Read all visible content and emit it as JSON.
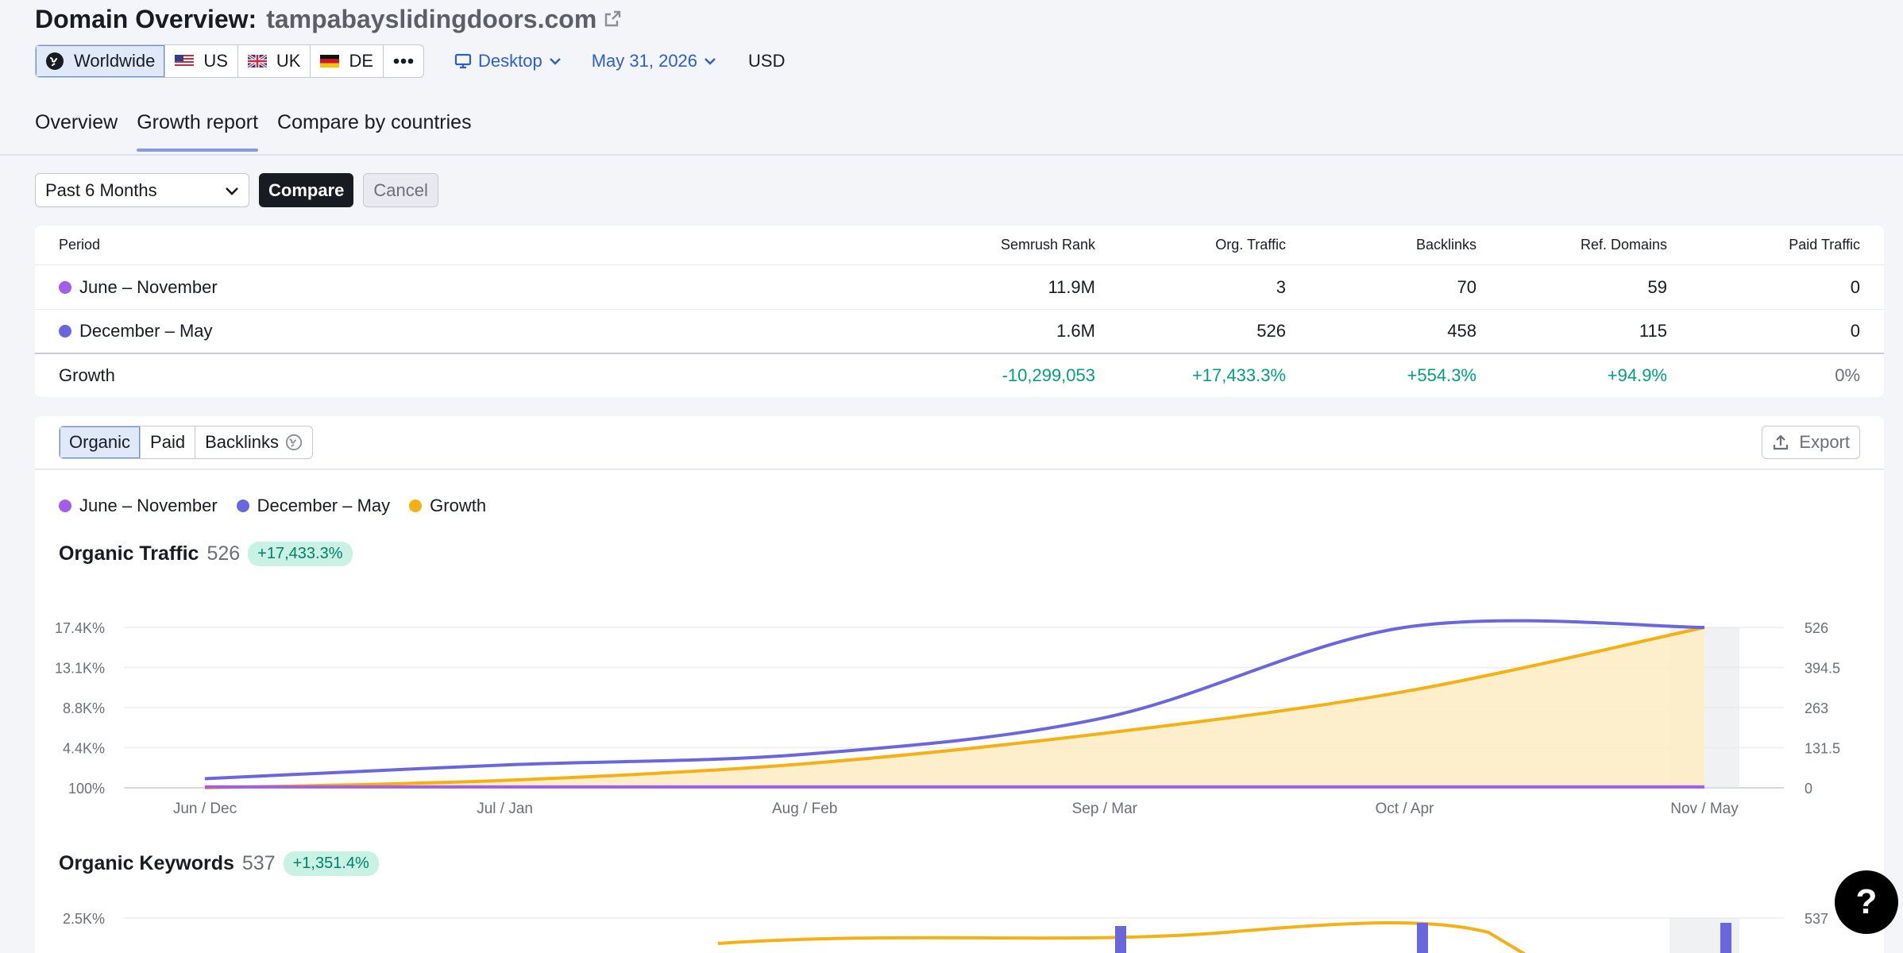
{
  "header": {
    "title_label": "Domain Overview:",
    "domain": "tampabayslidingdoors.com",
    "databases": [
      {
        "label": "Worldwide",
        "icon": "globe-icon",
        "active": true
      },
      {
        "label": "US",
        "icon": "flag-us-icon"
      },
      {
        "label": "UK",
        "icon": "flag-uk-icon"
      },
      {
        "label": "DE",
        "icon": "flag-de-icon"
      }
    ],
    "more_icon": "more-dots-icon",
    "device": "Desktop",
    "date": "May 31, 2026",
    "currency": "USD"
  },
  "tabs": [
    {
      "label": "Overview"
    },
    {
      "label": "Growth report",
      "active": true
    },
    {
      "label": "Compare by countries"
    }
  ],
  "compare": {
    "period": "Past 6 Months",
    "compare_label": "Compare",
    "cancel_label": "Cancel"
  },
  "table": {
    "headers": [
      "Period",
      "Semrush Rank",
      "Org. Traffic",
      "Backlinks",
      "Ref. Domains",
      "Paid Traffic"
    ],
    "rows": [
      {
        "period": "June – November",
        "color": "#a35de6",
        "values": [
          "11.9M",
          "3",
          "70",
          "59",
          "0"
        ]
      },
      {
        "period": "December – May",
        "color": "#6a66dc",
        "values": [
          "1.6M",
          "526",
          "458",
          "115",
          "0"
        ]
      }
    ],
    "growth": {
      "label": "Growth",
      "values": [
        "-10,299,053",
        "+17,433.3%",
        "+554.3%",
        "+94.9%",
        "0%"
      ]
    }
  },
  "chart_tabs": {
    "organic": "Organic",
    "paid": "Paid",
    "backlinks": "Backlinks",
    "export": "Export"
  },
  "legend": [
    {
      "label": "June – November",
      "color": "#a35de6"
    },
    {
      "label": "December – May",
      "color": "#6a66dc"
    },
    {
      "label": "Growth",
      "color": "#f5b014"
    }
  ],
  "traffic": {
    "title": "Organic Traffic",
    "value": "526",
    "growth": "+17,433.3%"
  },
  "keywords": {
    "title": "Organic Keywords",
    "value": "537",
    "growth": "+1,351.4%"
  },
  "chart_data": [
    {
      "type": "line",
      "title": "Organic Traffic",
      "categories": [
        "Jun / Dec",
        "Jul / Jan",
        "Aug / Feb",
        "Sep / Mar",
        "Oct / Apr",
        "Nov / May"
      ],
      "y_left_ticks": [
        "100%",
        "4.4K%",
        "8.8K%",
        "13.1K%",
        "17.4K%"
      ],
      "y_right_ticks": [
        "0",
        "131.5",
        "263",
        "394.5",
        "526"
      ],
      "ylim_right": [
        0,
        526
      ],
      "series": [
        {
          "name": "June – November",
          "values": [
            3,
            3,
            3,
            3,
            3,
            3
          ]
        },
        {
          "name": "December – May",
          "values": [
            30,
            75,
            110,
            230,
            526,
            526
          ]
        },
        {
          "name": "Growth",
          "axis": "left",
          "values": [
            100,
            900,
            2700,
            6000,
            10500,
            17433
          ]
        }
      ]
    },
    {
      "type": "line",
      "title": "Organic Keywords",
      "y_left_ticks": [
        "2.5K%"
      ],
      "y_right_ticks": [
        "537"
      ]
    }
  ],
  "help_label": "?"
}
